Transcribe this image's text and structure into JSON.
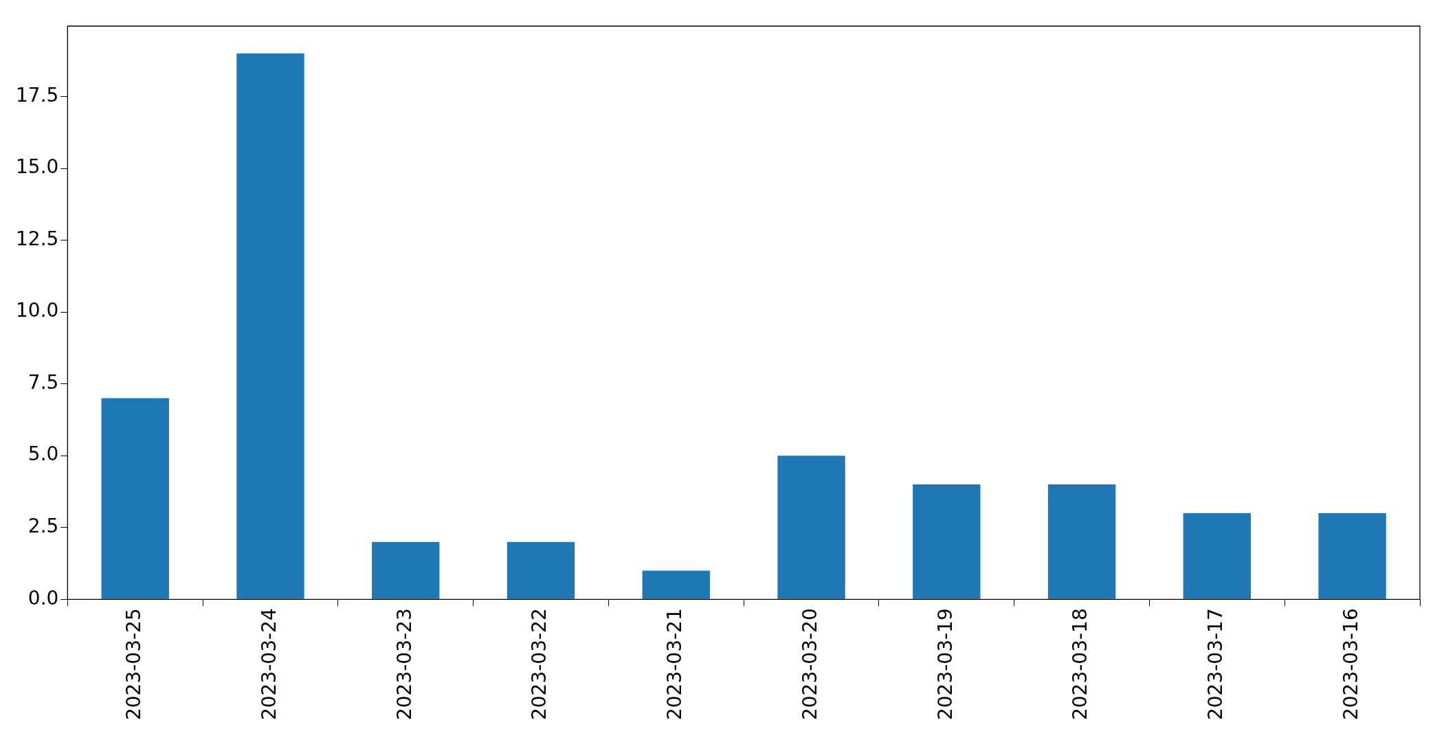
{
  "chart_data": {
    "type": "bar",
    "categories": [
      "2023-03-25",
      "2023-03-24",
      "2023-03-23",
      "2023-03-22",
      "2023-03-21",
      "2023-03-20",
      "2023-03-19",
      "2023-03-18",
      "2023-03-17",
      "2023-03-16"
    ],
    "values": [
      7,
      19,
      2,
      2,
      1,
      5,
      4,
      4,
      3,
      3
    ],
    "color": "#1f77b4",
    "ylim": [
      0,
      19.95
    ],
    "yticks": [
      {
        "value": 0,
        "label": "0.0"
      },
      {
        "value": 2.5,
        "label": "2.5"
      },
      {
        "value": 5,
        "label": "5.0"
      },
      {
        "value": 7.5,
        "label": "7.5"
      },
      {
        "value": 10,
        "label": "10.0"
      },
      {
        "value": 12.5,
        "label": "12.5"
      },
      {
        "value": 15,
        "label": "15.0"
      },
      {
        "value": 17.5,
        "label": "17.5"
      }
    ],
    "grid": false,
    "legend": false
  }
}
